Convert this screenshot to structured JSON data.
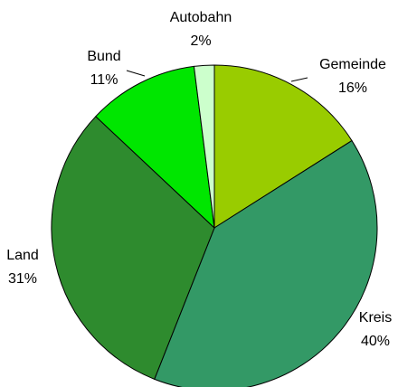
{
  "chart_data": {
    "type": "pie",
    "categories": [
      "Gemeinde",
      "Kreis",
      "Land",
      "Bund",
      "Autobahn"
    ],
    "values": [
      16,
      40,
      31,
      11,
      2
    ],
    "value_labels": [
      "16%",
      "40%",
      "31%",
      "11%",
      "2%"
    ],
    "colors": [
      "#99cc00",
      "#339966",
      "#2e8b2e",
      "#00e600",
      "#ccffcc"
    ]
  }
}
